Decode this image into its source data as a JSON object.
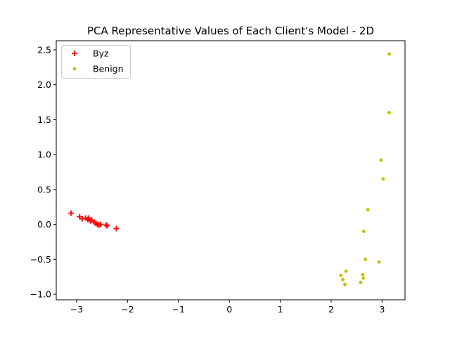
{
  "chart_data": {
    "type": "scatter",
    "title": "PCA Representative Values of Each Client's Model - 2D",
    "xlabel": "",
    "ylabel": "",
    "xlim": [
      -3.4,
      3.45
    ],
    "ylim": [
      -1.08,
      2.63
    ],
    "xticks": [
      -3,
      -2,
      -1,
      0,
      1,
      2,
      3
    ],
    "xtick_labels": [
      "−3",
      "−2",
      "−1",
      "0",
      "1",
      "2",
      "3"
    ],
    "yticks": [
      -1.0,
      -0.5,
      0.0,
      0.5,
      1.0,
      1.5,
      2.0,
      2.5
    ],
    "ytick_labels": [
      "−1.0",
      "−0.5",
      "0.0",
      "0.5",
      "1.0",
      "1.5",
      "2.0",
      "2.5"
    ],
    "grid": false,
    "legend_position": "top-left",
    "series": [
      {
        "name": "Byz",
        "marker": "plus",
        "color": "#ff0000",
        "points": [
          [
            -3.11,
            0.16
          ],
          [
            -2.94,
            0.11
          ],
          [
            -2.89,
            0.08
          ],
          [
            -2.82,
            0.09
          ],
          [
            -2.78,
            0.07
          ],
          [
            -2.76,
            0.09
          ],
          [
            -2.73,
            0.05
          ],
          [
            -2.7,
            0.06
          ],
          [
            -2.65,
            0.03
          ],
          [
            -2.62,
            0.01
          ],
          [
            -2.59,
            0.0
          ],
          [
            -2.56,
            -0.01
          ],
          [
            -2.53,
            0.0
          ],
          [
            -2.42,
            -0.01
          ],
          [
            -2.4,
            -0.02
          ],
          [
            -2.22,
            -0.06
          ]
        ]
      },
      {
        "name": "Benign",
        "marker": "dot",
        "color": "#bfbf00",
        "points": [
          [
            3.14,
            2.44
          ],
          [
            3.14,
            1.6
          ],
          [
            2.98,
            0.92
          ],
          [
            3.02,
            0.65
          ],
          [
            2.72,
            0.21
          ],
          [
            2.64,
            -0.1
          ],
          [
            2.67,
            -0.5
          ],
          [
            2.94,
            -0.54
          ],
          [
            2.29,
            -0.67
          ],
          [
            2.19,
            -0.73
          ],
          [
            2.62,
            -0.72
          ],
          [
            2.23,
            -0.79
          ],
          [
            2.63,
            -0.77
          ],
          [
            2.58,
            -0.83
          ],
          [
            2.27,
            -0.86
          ]
        ]
      }
    ]
  }
}
